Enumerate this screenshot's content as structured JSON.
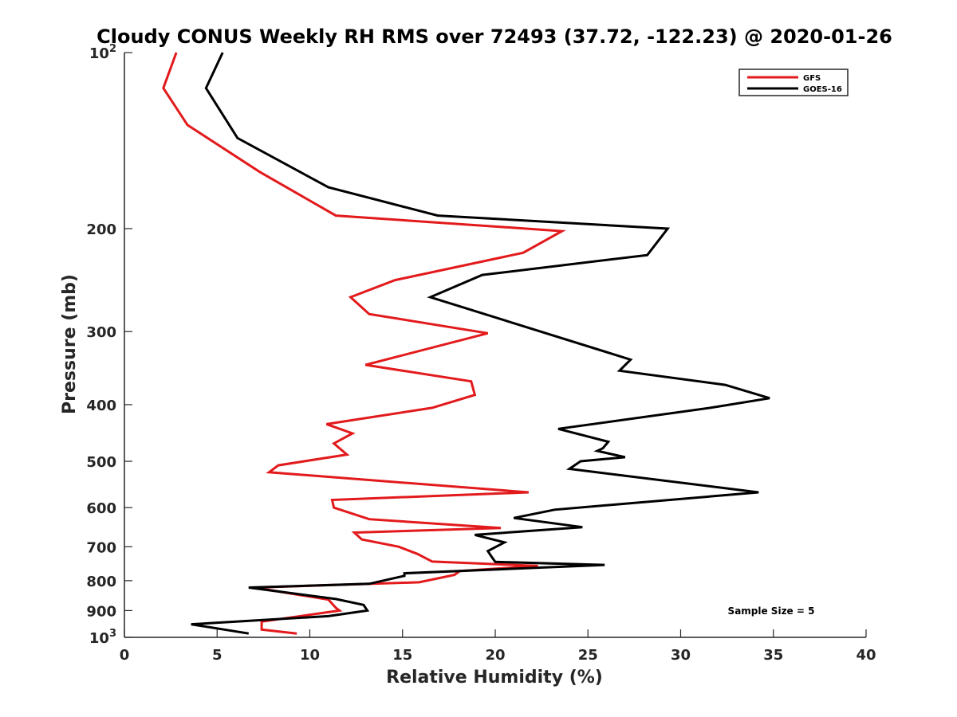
{
  "chart_data": {
    "type": "line",
    "title": "Cloudy CONUS Weekly RH RMS over 72493 (37.72, -122.23) @ 2020-01-26",
    "xlabel": "Relative Humidity (%)",
    "ylabel": "Pressure (mb)",
    "xlim": [
      0,
      40
    ],
    "ylim": [
      100,
      1000
    ],
    "y_scale": "log",
    "y_reversed": true,
    "x_ticks": [
      "0",
      "5",
      "10",
      "15",
      "20",
      "25",
      "30",
      "35",
      "40"
    ],
    "y_ticks": [
      {
        "value": 100,
        "label": "10",
        "exp": "2"
      },
      {
        "value": 200,
        "label": "200"
      },
      {
        "value": 300,
        "label": "300"
      },
      {
        "value": 400,
        "label": "400"
      },
      {
        "value": 500,
        "label": "500"
      },
      {
        "value": 600,
        "label": "600"
      },
      {
        "value": 700,
        "label": "700"
      },
      {
        "value": 800,
        "label": "800"
      },
      {
        "value": 900,
        "label": "900"
      },
      {
        "value": 1000,
        "label": "10",
        "exp": "3"
      }
    ],
    "grid": false,
    "legend_position": "top-right",
    "annotation": "Sample Size = 5",
    "series": [
      {
        "name": "GFS",
        "color": "#e31a1c",
        "points": [
          [
            2.8,
            100
          ],
          [
            2.1,
            115
          ],
          [
            3.4,
            133
          ],
          [
            7.3,
            160
          ],
          [
            11.4,
            190
          ],
          [
            23.6,
            202
          ],
          [
            21.5,
            220
          ],
          [
            14.6,
            245
          ],
          [
            12.2,
            262
          ],
          [
            13.2,
            280
          ],
          [
            19.6,
            302
          ],
          [
            13.0,
            342
          ],
          [
            18.7,
            365
          ],
          [
            18.9,
            385
          ],
          [
            16.6,
            405
          ],
          [
            10.9,
            432
          ],
          [
            12.3,
            448
          ],
          [
            11.3,
            466
          ],
          [
            12.0,
            487
          ],
          [
            8.3,
            508
          ],
          [
            7.8,
            522
          ],
          [
            21.8,
            565
          ],
          [
            11.2,
            582
          ],
          [
            11.3,
            600
          ],
          [
            13.2,
            628
          ],
          [
            20.3,
            650
          ],
          [
            12.4,
            662
          ],
          [
            12.8,
            680
          ],
          [
            14.8,
            700
          ],
          [
            15.8,
            720
          ],
          [
            16.6,
            742
          ],
          [
            22.3,
            755
          ],
          [
            18.1,
            770
          ],
          [
            17.8,
            782
          ],
          [
            15.9,
            805
          ],
          [
            7.0,
            822
          ],
          [
            11.0,
            862
          ],
          [
            11.4,
            890
          ],
          [
            11.6,
            900
          ],
          [
            7.4,
            940
          ],
          [
            7.4,
            970
          ],
          [
            9.3,
            985
          ]
        ]
      },
      {
        "name": "GOES-16",
        "color": "#000000",
        "points": [
          [
            5.3,
            100
          ],
          [
            4.4,
            115
          ],
          [
            6.1,
            140
          ],
          [
            11.0,
            170
          ],
          [
            16.9,
            190
          ],
          [
            29.3,
            200
          ],
          [
            28.2,
            222
          ],
          [
            19.3,
            240
          ],
          [
            16.5,
            262
          ],
          [
            27.3,
            335
          ],
          [
            26.7,
            350
          ],
          [
            32.4,
            370
          ],
          [
            34.8,
            390
          ],
          [
            31.6,
            405
          ],
          [
            23.4,
            440
          ],
          [
            26.1,
            463
          ],
          [
            25.8,
            475
          ],
          [
            25.5,
            480
          ],
          [
            27.0,
            492
          ],
          [
            24.6,
            500
          ],
          [
            24.0,
            515
          ],
          [
            34.2,
            565
          ],
          [
            23.2,
            605
          ],
          [
            21.0,
            625
          ],
          [
            24.7,
            648
          ],
          [
            18.9,
            668
          ],
          [
            20.5,
            688
          ],
          [
            19.6,
            712
          ],
          [
            19.8,
            728
          ],
          [
            20.0,
            743
          ],
          [
            25.9,
            752
          ],
          [
            15.1,
            777
          ],
          [
            15.1,
            785
          ],
          [
            13.2,
            810
          ],
          [
            6.7,
            822
          ],
          [
            11.4,
            860
          ],
          [
            12.9,
            880
          ],
          [
            13.1,
            900
          ],
          [
            11.0,
            920
          ],
          [
            3.6,
            950
          ],
          [
            6.7,
            985
          ]
        ]
      }
    ]
  }
}
